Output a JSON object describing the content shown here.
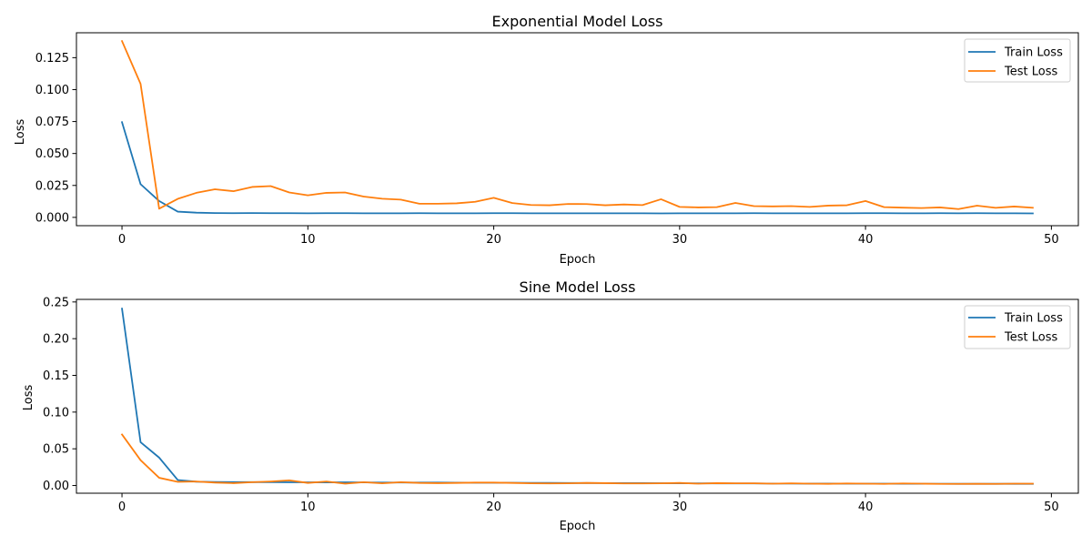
{
  "colors": {
    "train": "#1f77b4",
    "test": "#ff7f0e",
    "axes": "#000000",
    "legend_border": "#cccccc"
  },
  "chart_data": [
    {
      "type": "line",
      "title": "Exponential Model Loss",
      "xlabel": "Epoch",
      "ylabel": "Loss",
      "xlim": [
        -2.45,
        51.45
      ],
      "ylim": [
        -0.0065,
        0.1445
      ],
      "xticks": [
        0,
        10,
        20,
        30,
        40,
        50
      ],
      "xtick_labels": [
        "0",
        "10",
        "20",
        "30",
        "40",
        "50"
      ],
      "yticks": [
        0.0,
        0.025,
        0.05,
        0.075,
        0.1,
        0.125
      ],
      "ytick_labels": [
        "0.000",
        "0.025",
        "0.050",
        "0.075",
        "0.100",
        "0.125"
      ],
      "grid": false,
      "legend_position": "top-right",
      "x": [
        0,
        1,
        2,
        3,
        4,
        5,
        6,
        7,
        8,
        9,
        10,
        11,
        12,
        13,
        14,
        15,
        16,
        17,
        18,
        19,
        20,
        21,
        22,
        23,
        24,
        25,
        26,
        27,
        28,
        29,
        30,
        31,
        32,
        33,
        34,
        35,
        36,
        37,
        38,
        39,
        40,
        41,
        42,
        43,
        44,
        45,
        46,
        47,
        48,
        49
      ],
      "series": [
        {
          "name": "Train Loss",
          "color": "#1f77b4",
          "values": [
            0.0745,
            0.026,
            0.0128,
            0.0045,
            0.0037,
            0.0034,
            0.0033,
            0.0034,
            0.0033,
            0.0033,
            0.0032,
            0.0033,
            0.0033,
            0.0032,
            0.0032,
            0.0032,
            0.0033,
            0.0032,
            0.0032,
            0.0032,
            0.0033,
            0.0033,
            0.0032,
            0.0032,
            0.0032,
            0.0032,
            0.0032,
            0.0032,
            0.0032,
            0.0031,
            0.0032,
            0.0032,
            0.0032,
            0.0032,
            0.0033,
            0.0032,
            0.0032,
            0.0032,
            0.0032,
            0.0032,
            0.0033,
            0.0033,
            0.0032,
            0.0032,
            0.0033,
            0.0032,
            0.0033,
            0.0032,
            0.0032,
            0.0031
          ]
        },
        {
          "name": "Test Loss",
          "color": "#ff7f0e",
          "values": [
            0.138,
            0.1045,
            0.0068,
            0.0145,
            0.0192,
            0.022,
            0.0205,
            0.0238,
            0.0245,
            0.0195,
            0.0173,
            0.0192,
            0.0195,
            0.0163,
            0.0146,
            0.0139,
            0.0107,
            0.0107,
            0.011,
            0.0122,
            0.0153,
            0.0112,
            0.0097,
            0.0095,
            0.0105,
            0.0104,
            0.0095,
            0.0101,
            0.0096,
            0.0142,
            0.0082,
            0.0078,
            0.008,
            0.0113,
            0.0088,
            0.0086,
            0.0088,
            0.0082,
            0.0092,
            0.0095,
            0.0128,
            0.008,
            0.0076,
            0.0073,
            0.0078,
            0.0065,
            0.0092,
            0.0075,
            0.0085,
            0.0075
          ]
        }
      ]
    },
    {
      "type": "line",
      "title": "Sine Model Loss",
      "xlabel": "Epoch",
      "ylabel": "Loss",
      "xlim": [
        -2.45,
        51.45
      ],
      "ylim": [
        -0.0105,
        0.2535
      ],
      "xticks": [
        0,
        10,
        20,
        30,
        40,
        50
      ],
      "xtick_labels": [
        "0",
        "10",
        "20",
        "30",
        "40",
        "50"
      ],
      "yticks": [
        0.0,
        0.05,
        0.1,
        0.15,
        0.2,
        0.25
      ],
      "ytick_labels": [
        "0.00",
        "0.05",
        "0.10",
        "0.15",
        "0.20",
        "0.25"
      ],
      "grid": false,
      "legend_position": "top-right",
      "x": [
        0,
        1,
        2,
        3,
        4,
        5,
        6,
        7,
        8,
        9,
        10,
        11,
        12,
        13,
        14,
        15,
        16,
        17,
        18,
        19,
        20,
        21,
        22,
        23,
        24,
        25,
        26,
        27,
        28,
        29,
        30,
        31,
        32,
        33,
        34,
        35,
        36,
        37,
        38,
        39,
        40,
        41,
        42,
        43,
        44,
        45,
        46,
        47,
        48,
        49
      ],
      "series": [
        {
          "name": "Train Loss",
          "color": "#1f77b4",
          "values": [
            0.241,
            0.059,
            0.038,
            0.0075,
            0.0052,
            0.0048,
            0.0047,
            0.0046,
            0.0045,
            0.0044,
            0.0044,
            0.0043,
            0.0043,
            0.0042,
            0.0041,
            0.0041,
            0.004,
            0.004,
            0.0039,
            0.0038,
            0.0038,
            0.0037,
            0.0036,
            0.0035,
            0.0034,
            0.0034,
            0.0033,
            0.0032,
            0.0032,
            0.0031,
            0.003,
            0.003,
            0.0029,
            0.0028,
            0.0028,
            0.0027,
            0.0027,
            0.0026,
            0.0026,
            0.0025,
            0.0025,
            0.0025,
            0.0024,
            0.0024,
            0.0024,
            0.0023,
            0.0023,
            0.0023,
            0.0023,
            0.0022
          ]
        },
        {
          "name": "Test Loss",
          "color": "#ff7f0e",
          "values": [
            0.0695,
            0.0345,
            0.0105,
            0.005,
            0.0055,
            0.004,
            0.0032,
            0.0045,
            0.0055,
            0.007,
            0.0035,
            0.0055,
            0.0025,
            0.0045,
            0.003,
            0.0045,
            0.0035,
            0.0032,
            0.0035,
            0.004,
            0.004,
            0.0035,
            0.003,
            0.0028,
            0.003,
            0.0035,
            0.0032,
            0.0028,
            0.0028,
            0.003,
            0.0035,
            0.0025,
            0.0032,
            0.003,
            0.003,
            0.0025,
            0.003,
            0.0025,
            0.0023,
            0.0028,
            0.0025,
            0.0022,
            0.0028,
            0.0025,
            0.0022,
            0.0022,
            0.0023,
            0.0022,
            0.0025,
            0.0025
          ]
        }
      ]
    }
  ]
}
